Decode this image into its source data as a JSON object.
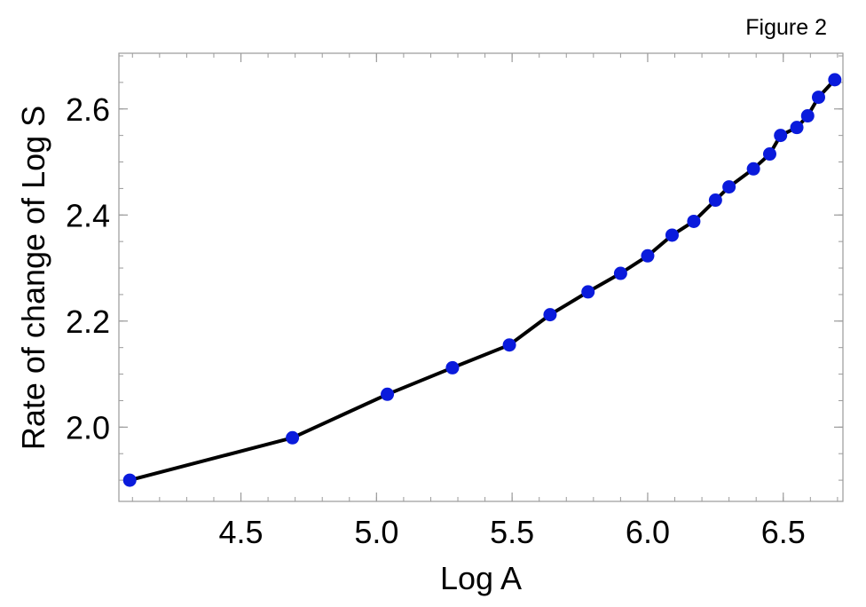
{
  "figure_label": "Figure 2",
  "colors": {
    "marker": "#0a1bdc",
    "line": "#000000",
    "frame": "#9a9a9a"
  },
  "chart_data": {
    "type": "line",
    "title": "",
    "xlabel": "Log A",
    "ylabel": "Rate of change of Log S",
    "xlim": [
      4.05,
      6.72
    ],
    "ylim": [
      1.86,
      2.705
    ],
    "xticks": [
      4.5,
      5.0,
      5.5,
      6.0,
      6.5
    ],
    "xtick_labels": [
      "4.5",
      "5.0",
      "5.5",
      "6.0",
      "6.5"
    ],
    "yticks": [
      2.0,
      2.2,
      2.4,
      2.6
    ],
    "ytick_labels": [
      "2.0",
      "2.2",
      "2.4",
      "2.6"
    ],
    "grid": false,
    "markers": true,
    "series": [
      {
        "x": [
          4.09,
          4.69,
          5.04,
          5.28,
          5.49,
          5.64,
          5.78,
          5.9,
          6.0,
          6.09,
          6.17,
          6.25,
          6.3,
          6.39,
          6.45,
          6.49,
          6.55,
          6.59,
          6.63,
          6.69
        ],
        "y": [
          1.9,
          1.98,
          2.062,
          2.112,
          2.155,
          2.212,
          2.255,
          2.29,
          2.323,
          2.362,
          2.388,
          2.428,
          2.453,
          2.487,
          2.515,
          2.55,
          2.565,
          2.587,
          2.622,
          2.655
        ]
      }
    ]
  }
}
